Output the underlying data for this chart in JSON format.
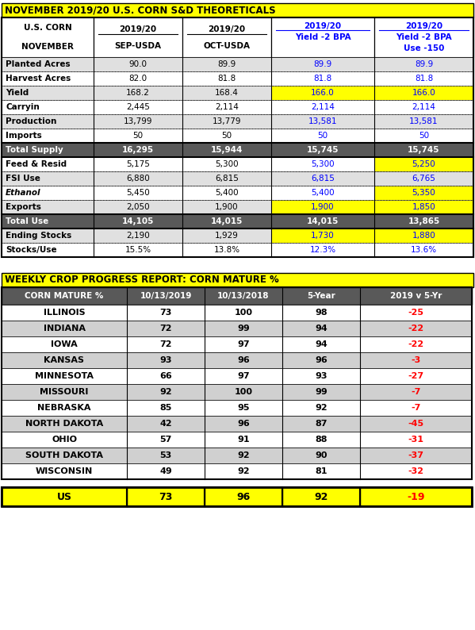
{
  "title1": "NOVEMBER 2019/20 U.S. CORN S&D THEORETICALS",
  "title2": "WEEKLY CROP PROGRESS REPORT: CORN MATURE %",
  "table1_rows": [
    [
      "Planted Acres",
      "90.0",
      "89.9",
      "89.9",
      "89.9"
    ],
    [
      "Harvest Acres",
      "82.0",
      "81.8",
      "81.8",
      "81.8"
    ],
    [
      "Yield",
      "168.2",
      "168.4",
      "166.0",
      "166.0"
    ],
    [
      "Carryin",
      "2,445",
      "2,114",
      "2,114",
      "2,114"
    ],
    [
      "Production",
      "13,799",
      "13,779",
      "13,581",
      "13,581"
    ],
    [
      "Imports",
      "50",
      "50",
      "50",
      "50"
    ],
    [
      "Total Supply",
      "16,295",
      "15,944",
      "15,745",
      "15,745"
    ],
    [
      "Feed & Resid",
      "5,175",
      "5,300",
      "5,300",
      "5,250"
    ],
    [
      "FSI Use",
      "6,880",
      "6,815",
      "6,815",
      "6,765"
    ],
    [
      "Ethanol",
      "5,450",
      "5,400",
      "5,400",
      "5,350"
    ],
    [
      "Exports",
      "2,050",
      "1,900",
      "1,900",
      "1,850"
    ],
    [
      "Total Use",
      "14,105",
      "14,015",
      "14,015",
      "13,865"
    ],
    [
      "Ending Stocks",
      "2,190",
      "1,929",
      "1,730",
      "1,880"
    ],
    [
      "Stocks/Use",
      "15.5%",
      "13.8%",
      "12.3%",
      "13.6%"
    ]
  ],
  "table1_row_types": [
    "normal",
    "normal",
    "normal",
    "normal",
    "normal",
    "normal",
    "total",
    "normal",
    "normal",
    "italic",
    "normal",
    "total",
    "normal",
    "normal"
  ],
  "table1_yellow_cells": [
    [
      2,
      3
    ],
    [
      2,
      4
    ],
    [
      7,
      4
    ],
    [
      9,
      4
    ],
    [
      10,
      3
    ],
    [
      10,
      4
    ],
    [
      12,
      3
    ],
    [
      12,
      4
    ]
  ],
  "table2_headers": [
    "CORN MATURE %",
    "10/13/2019",
    "10/13/2018",
    "5-Year",
    "2019 v 5-Yr"
  ],
  "table2_rows": [
    [
      "ILLINOIS",
      "73",
      "100",
      "98",
      "-25"
    ],
    [
      "INDIANA",
      "72",
      "99",
      "94",
      "-22"
    ],
    [
      "IOWA",
      "72",
      "97",
      "94",
      "-22"
    ],
    [
      "KANSAS",
      "93",
      "96",
      "96",
      "-3"
    ],
    [
      "MINNESOTA",
      "66",
      "97",
      "93",
      "-27"
    ],
    [
      "MISSOURI",
      "92",
      "100",
      "99",
      "-7"
    ],
    [
      "NEBRASKA",
      "85",
      "95",
      "92",
      "-7"
    ],
    [
      "NORTH DAKOTA",
      "42",
      "96",
      "87",
      "-45"
    ],
    [
      "OHIO",
      "57",
      "91",
      "88",
      "-31"
    ],
    [
      "SOUTH DAKOTA",
      "53",
      "92",
      "90",
      "-37"
    ],
    [
      "WISCONSIN",
      "49",
      "92",
      "81",
      "-32"
    ]
  ],
  "table2_us_row": [
    "US",
    "73",
    "96",
    "92",
    "-19"
  ],
  "colors": {
    "yellow": "#FFFF00",
    "dark_gray": "#595959",
    "blue": "#0000FF",
    "white": "#FFFFFF",
    "black": "#000000",
    "red": "#FF0000",
    "light_gray_row": "#D0D0D0",
    "light_gray_t1": "#E0E0E0"
  }
}
